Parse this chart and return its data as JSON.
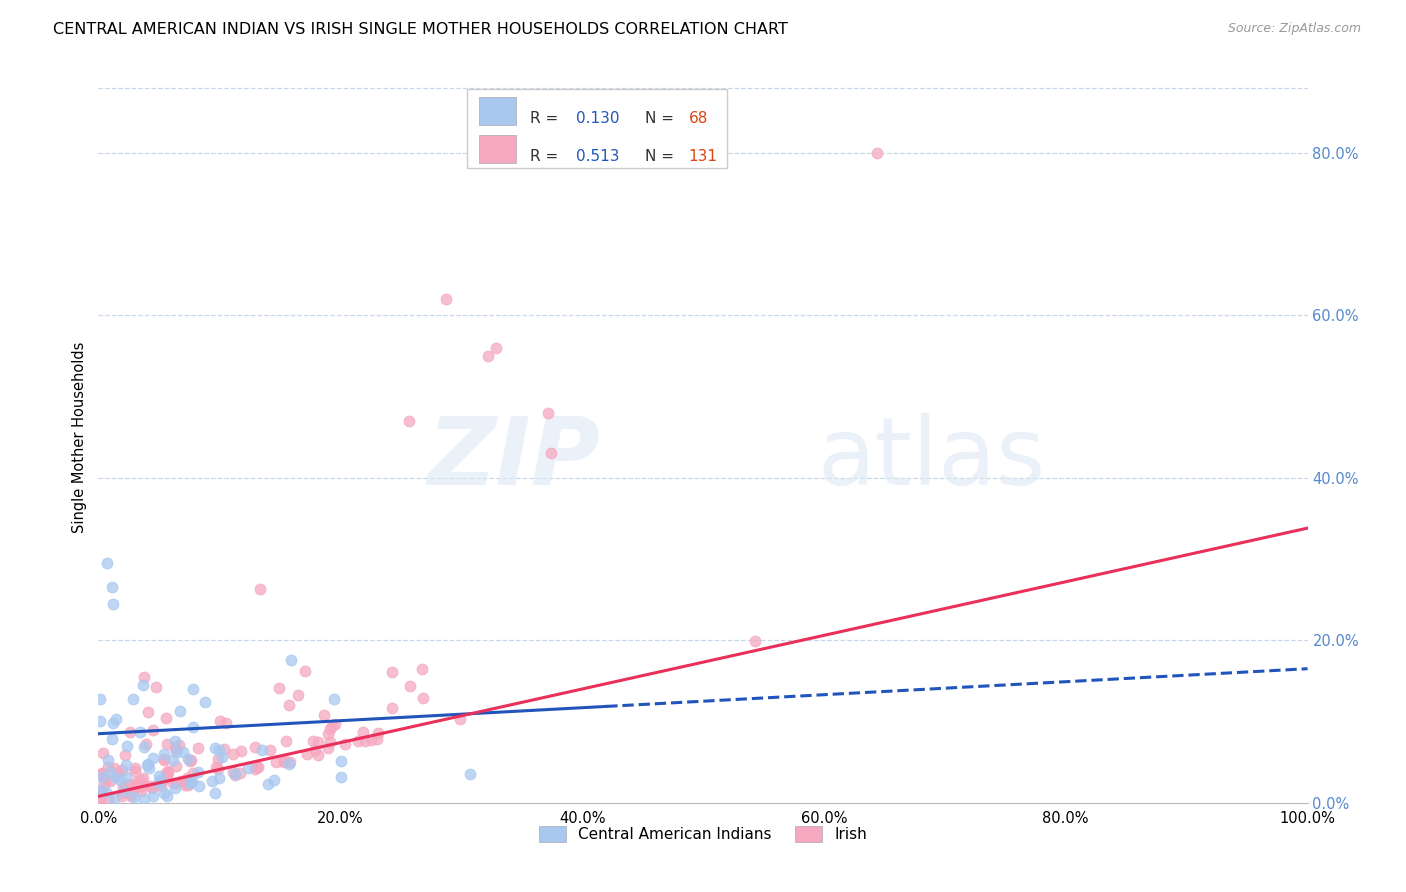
{
  "title": "CENTRAL AMERICAN INDIAN VS IRISH SINGLE MOTHER HOUSEHOLDS CORRELATION CHART",
  "source": "Source: ZipAtlas.com",
  "ylabel": "Single Mother Households",
  "legend_blue_r": "0.130",
  "legend_blue_n": "68",
  "legend_pink_r": "0.513",
  "legend_pink_n": "131",
  "legend_label1": "Central American Indians",
  "legend_label2": "Irish",
  "blue_color": "#a8c8f0",
  "pink_color": "#f5a8c0",
  "blue_line_color": "#2255bb",
  "pink_line_color": "#e8305a",
  "right_axis_color": "#5588cc",
  "text_blue_color": "#2255bb",
  "text_orange_color": "#dd4411",
  "background_color": "#ffffff",
  "grid_color": "#c8d8e8",
  "xlim": [
    0.0,
    1.0
  ],
  "ylim": [
    0.0,
    0.9
  ],
  "xticks": [
    0.0,
    0.2,
    0.4,
    0.6,
    0.8,
    1.0
  ],
  "yticks_right": [
    0.0,
    0.2,
    0.4,
    0.6,
    0.8
  ],
  "scatter_size": 60,
  "scatter_alpha": 0.75,
  "scatter_linewidth": 0.8
}
